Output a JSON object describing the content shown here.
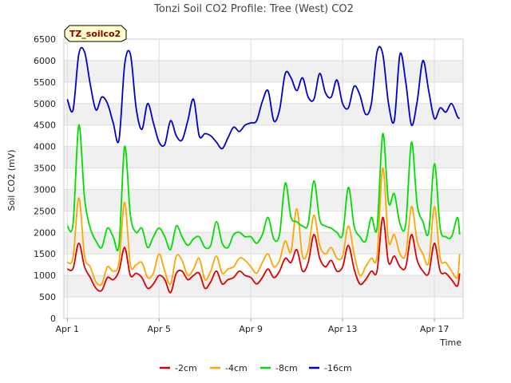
{
  "chart_data": {
    "type": "line",
    "title": "Tonzi Soil CO2 Profile: Tree (West) CO2",
    "xlabel": "Time",
    "ylabel": "Soil CO2 (mV)",
    "site_label": "TZ_soilco2",
    "xlim": [
      0.85,
      18.25
    ],
    "ylim": [
      0,
      6500
    ],
    "yticks": [
      0,
      500,
      1000,
      1500,
      2000,
      2500,
      3000,
      3500,
      4000,
      4500,
      5000,
      5500,
      6000,
      6500
    ],
    "xticks": [
      {
        "day": 1,
        "label": "Apr 1"
      },
      {
        "day": 5,
        "label": "Apr 5"
      },
      {
        "day": 9,
        "label": "Apr 9"
      },
      {
        "day": 13,
        "label": "Apr 13"
      },
      {
        "day": 17,
        "label": "Apr 17"
      }
    ],
    "x": [
      1.0,
      1.25,
      1.5,
      1.75,
      2.0,
      2.25,
      2.5,
      2.75,
      3.0,
      3.25,
      3.5,
      3.75,
      4.0,
      4.25,
      4.5,
      4.75,
      5.0,
      5.25,
      5.5,
      5.75,
      6.0,
      6.25,
      6.5,
      6.75,
      7.0,
      7.25,
      7.5,
      7.75,
      8.0,
      8.25,
      8.5,
      8.75,
      9.0,
      9.25,
      9.5,
      9.75,
      10.0,
      10.25,
      10.5,
      10.75,
      11.0,
      11.25,
      11.5,
      11.75,
      12.0,
      12.25,
      12.5,
      12.75,
      13.0,
      13.25,
      13.5,
      13.75,
      14.0,
      14.25,
      14.5,
      14.75,
      15.0,
      15.25,
      15.5,
      15.75,
      16.0,
      16.25,
      16.5,
      16.75,
      17.0,
      17.25,
      17.5,
      17.75,
      18.0,
      18.1
    ],
    "series": [
      {
        "name": "-2cm",
        "color": "#dd0000",
        "values": [
          1150,
          1160,
          1750,
          1200,
          950,
          700,
          650,
          950,
          900,
          1100,
          1650,
          1000,
          1050,
          950,
          700,
          800,
          1000,
          900,
          600,
          1050,
          1100,
          900,
          1000,
          1050,
          700,
          850,
          1100,
          800,
          900,
          950,
          1100,
          1000,
          950,
          800,
          950,
          1150,
          950,
          1100,
          1400,
          1300,
          1600,
          1100,
          1300,
          1950,
          1400,
          1200,
          1350,
          1100,
          1200,
          1700,
          1150,
          800,
          900,
          1100,
          1100,
          2350,
          1300,
          1450,
          1200,
          1200,
          1950,
          1350,
          1100,
          1050,
          1750,
          1100,
          1050,
          900,
          750,
          1050
        ]
      },
      {
        "name": "-4cm",
        "color": "#ffa500",
        "values": [
          1300,
          1420,
          2800,
          1450,
          1200,
          850,
          800,
          1200,
          1100,
          1300,
          2700,
          1250,
          1250,
          1300,
          950,
          1050,
          1500,
          1100,
          800,
          1450,
          1350,
          1000,
          1150,
          1400,
          900,
          1100,
          1450,
          1050,
          1150,
          1200,
          1400,
          1350,
          1200,
          1050,
          1300,
          1500,
          1200,
          1350,
          1800,
          1550,
          2550,
          1450,
          1600,
          2400,
          1700,
          1500,
          1650,
          1400,
          1450,
          2150,
          1500,
          1000,
          1200,
          1400,
          1450,
          3500,
          1800,
          1950,
          1500,
          1500,
          2600,
          1800,
          1500,
          1300,
          2600,
          1400,
          1300,
          1100,
          950,
          1500
        ]
      },
      {
        "name": "-8cm",
        "color": "#00dd00",
        "values": [
          2150,
          2200,
          4500,
          2800,
          2100,
          1800,
          1650,
          2100,
          1900,
          1700,
          4000,
          2400,
          2000,
          2100,
          1650,
          1900,
          2100,
          1900,
          1600,
          2150,
          1900,
          1700,
          1850,
          1900,
          1650,
          1700,
          2250,
          1750,
          1650,
          1950,
          2000,
          1900,
          1900,
          1750,
          1950,
          2350,
          1850,
          1950,
          3150,
          2350,
          2250,
          2150,
          2200,
          3200,
          2300,
          2150,
          2100,
          2000,
          1950,
          3050,
          2150,
          1900,
          1800,
          2350,
          2100,
          4300,
          2700,
          2900,
          2200,
          2200,
          4100,
          2650,
          2250,
          2000,
          3600,
          2100,
          1900,
          1900,
          2350,
          1950
        ]
      },
      {
        "name": "-16cm",
        "color": "#0000cc",
        "values": [
          5100,
          4850,
          6150,
          6200,
          5450,
          4850,
          5150,
          5000,
          4550,
          4150,
          5900,
          6150,
          4900,
          4400,
          5000,
          4550,
          4100,
          4050,
          4600,
          4250,
          4150,
          4600,
          5100,
          4250,
          4300,
          4250,
          4100,
          3950,
          4200,
          4450,
          4350,
          4500,
          4550,
          4600,
          5050,
          5300,
          4600,
          4850,
          5700,
          5600,
          5300,
          5600,
          5150,
          5100,
          5700,
          5250,
          5150,
          5550,
          5000,
          4900,
          5400,
          5200,
          4750,
          5000,
          6200,
          6150,
          5000,
          4600,
          6150,
          5500,
          4500,
          5050,
          6000,
          5300,
          4650,
          4900,
          4800,
          5000,
          4700,
          4650
        ]
      }
    ]
  }
}
